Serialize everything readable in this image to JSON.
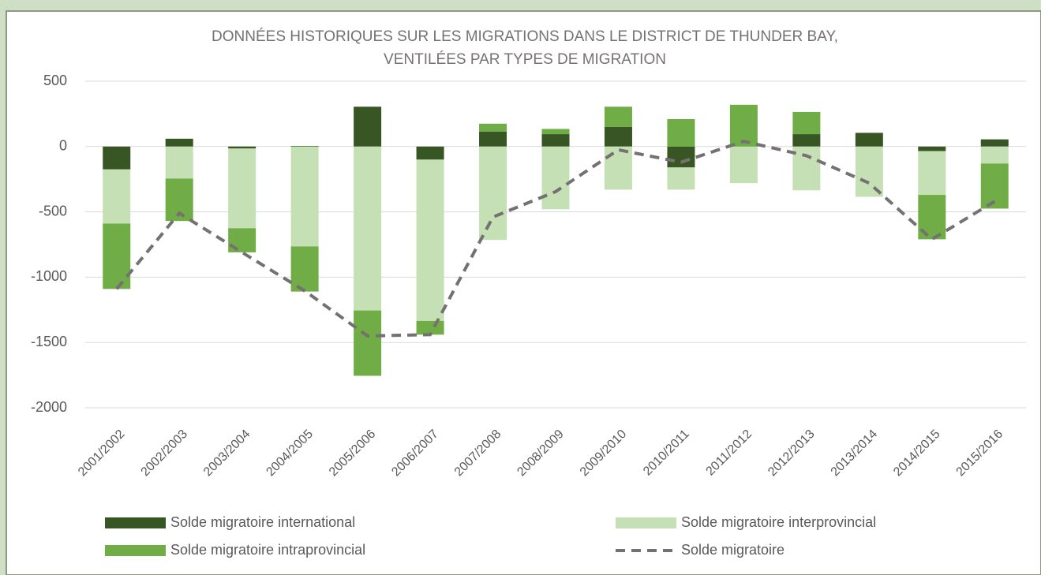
{
  "chart_data": {
    "type": "bar",
    "title": [
      "DONNÉES HISTORIQUES SUR LES MIGRATIONS DANS LE DISTRICT DE THUNDER BAY,",
      "VENTILÉES PAR TYPES DE MIGRATION"
    ],
    "categories": [
      "2001/2002",
      "2002/2003",
      "2003/2004",
      "2004/2005",
      "2005/2006",
      "2006/2007",
      "2007/2008",
      "2008/2009",
      "2009/2010",
      "2010/2011",
      "2011/2012",
      "2012/2013",
      "2013/2014",
      "2014/2015",
      "2015/2016"
    ],
    "series": [
      {
        "name": "Solde migratoire international",
        "type": "bar",
        "color": "#375623",
        "values": [
          -175,
          60,
          -15,
          5,
          305,
          -100,
          115,
          95,
          150,
          -160,
          0,
          95,
          105,
          -35,
          55
        ]
      },
      {
        "name": "Solde migratoire interprovincial",
        "type": "bar",
        "color": "#c5e0b4",
        "values": [
          -415,
          -245,
          -610,
          -765,
          -1255,
          -1235,
          -715,
          -480,
          -330,
          -170,
          -280,
          -335,
          -385,
          -335,
          -130
        ]
      },
      {
        "name": "Solde migratoire intraprovincial",
        "type": "bar",
        "color": "#70ad47",
        "values": [
          -500,
          -325,
          -185,
          -345,
          -500,
          -105,
          60,
          40,
          155,
          210,
          320,
          170,
          0,
          -340,
          -345
        ]
      },
      {
        "name": "Solde migratoire",
        "type": "line",
        "color": "#767171",
        "dashed": true,
        "values": [
          -1090,
          -510,
          -810,
          -1105,
          -1450,
          -1440,
          -540,
          -345,
          -25,
          -120,
          40,
          -70,
          -280,
          -710,
          -420
        ]
      }
    ],
    "ylim": [
      -2000,
      500
    ],
    "yticks": [
      -2000,
      -1500,
      -1000,
      -500,
      0,
      500
    ],
    "grid": true,
    "legend": "bottom"
  }
}
